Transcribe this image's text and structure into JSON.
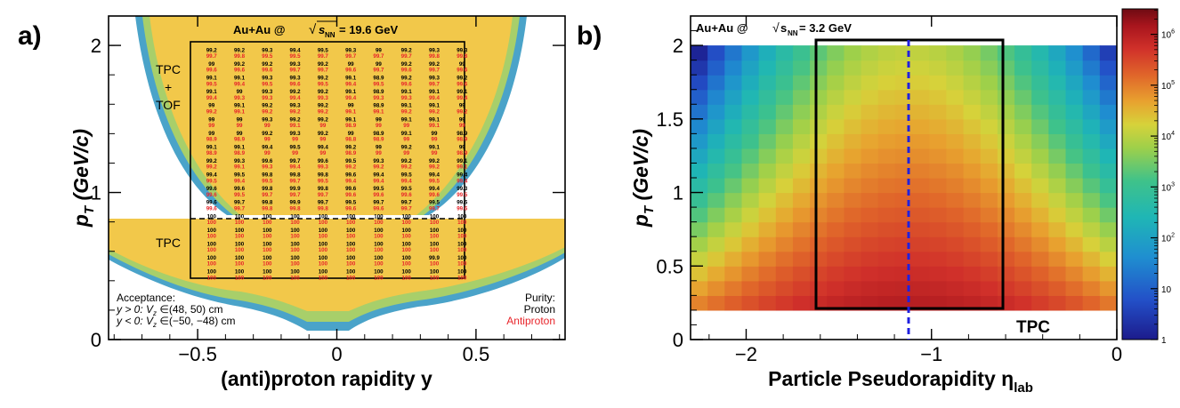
{
  "chart_data": [
    {
      "type": "heatmap",
      "panel_label": "a)",
      "title_prefix": "Au+Au @",
      "title_energy": "= 19.6 GeV",
      "sqrt_symbol": "√",
      "s_letter": "s",
      "s_subscript": "NN",
      "xlabel": "(anti)proton rapidity y",
      "ylabel_p": "p",
      "ylabel_sub": "T",
      "ylabel_unit": " (GeV/c)",
      "xlim": [
        -0.82,
        0.82
      ],
      "ylim": [
        0,
        2.2
      ],
      "xticks": [
        -0.5,
        0,
        0.5
      ],
      "xtick_labels": [
        "−0.5",
        "0",
        "0.5"
      ],
      "yticks": [
        0,
        1,
        2
      ],
      "ytick_labels": [
        "0",
        "1",
        "2"
      ],
      "box": {
        "x": [
          -0.5,
          0.5
        ],
        "y": [
          0.4,
          2.0
        ]
      },
      "dashed_line_pt": 0.8,
      "tpc_tof_label": [
        "TPC",
        "+",
        "TOF"
      ],
      "tpc_label": "TPC",
      "acceptance_title": "Acceptance:",
      "acceptance_line1": "y > 0: V",
      "acceptance_line1_rest": " ∈(48, 50) cm",
      "acceptance_line2": "y < 0: V",
      "acceptance_line2_rest": " ∈(−50, −48) cm",
      "vz_sub": "z",
      "purity_title": "Purity:",
      "purity_proton": "Proton",
      "purity_antiproton": "Antiproton",
      "purity_rows": [
        {
          "proton": [
            "99.2",
            "99.2",
            "99.3",
            "99.4",
            "99.5",
            "99.3",
            "99",
            "99.2",
            "99.3",
            "99.3"
          ],
          "antiproton": [
            "99.7",
            "99.8",
            "99.5",
            "99.5",
            "99.7",
            "99.7",
            "99.7",
            "99.7",
            "99.8",
            "99.8"
          ]
        },
        {
          "proton": [
            "99",
            "99.2",
            "99.2",
            "99.3",
            "99.2",
            "99",
            "99",
            "99.2",
            "99.2",
            "99"
          ],
          "antiproton": [
            "99.6",
            "99.6",
            "99.6",
            "99.7",
            "99.7",
            "99.6",
            "99.7",
            "99.6",
            "99.7",
            "99.6"
          ]
        },
        {
          "proton": [
            "99.1",
            "99.1",
            "99.3",
            "99.3",
            "99.2",
            "99.1",
            "98.9",
            "99.2",
            "99.3",
            "99.2"
          ],
          "antiproton": [
            "99.5",
            "99.4",
            "99.5",
            "99.6",
            "99.5",
            "99.4",
            "99.5",
            "99.6",
            "99.7",
            "99.6"
          ]
        },
        {
          "proton": [
            "99.1",
            "99",
            "99.3",
            "99.2",
            "99.2",
            "99.1",
            "98.9",
            "99.1",
            "99.1",
            "99.1"
          ],
          "antiproton": [
            "99.4",
            "99.3",
            "99.3",
            "99.4",
            "99.3",
            "99.4",
            "99.3",
            "99.3",
            "99.4",
            "99.4"
          ]
        },
        {
          "proton": [
            "99",
            "99.1",
            "99.2",
            "99.3",
            "99.2",
            "99",
            "98.9",
            "99.1",
            "99.1",
            "99"
          ],
          "antiproton": [
            "99.2",
            "99.1",
            "99.2",
            "99.2",
            "99.2",
            "99.1",
            "99.1",
            "99.2",
            "99.2",
            "99.2"
          ]
        },
        {
          "proton": [
            "99",
            "99",
            "99.3",
            "99.2",
            "99.2",
            "99.1",
            "99",
            "99.1",
            "99.1",
            "99"
          ],
          "antiproton": [
            "99",
            "99",
            "99",
            "99.1",
            "99",
            "98.9",
            "99",
            "99",
            "99.1",
            "99"
          ]
        },
        {
          "proton": [
            "99",
            "99",
            "99.2",
            "99.3",
            "99.2",
            "99",
            "98.9",
            "99.1",
            "99",
            "98.9"
          ],
          "antiproton": [
            "98.9",
            "98.9",
            "99",
            "99",
            "99",
            "98.8",
            "98.9",
            "99",
            "99",
            "98.9"
          ]
        },
        {
          "proton": [
            "99.1",
            "99.1",
            "99.4",
            "99.5",
            "99.4",
            "99.2",
            "99",
            "99.2",
            "99.1",
            "99"
          ],
          "antiproton": [
            "98.9",
            "98.9",
            "99",
            "99",
            "99",
            "98.9",
            "99",
            "99",
            "99",
            "98.9"
          ]
        },
        {
          "proton": [
            "99.2",
            "99.3",
            "99.6",
            "99.7",
            "99.6",
            "99.5",
            "99.3",
            "99.2",
            "99.2",
            "99.1"
          ],
          "antiproton": [
            "99.2",
            "99.1",
            "99.3",
            "99.4",
            "99.3",
            "99.2",
            "99.2",
            "99.2",
            "99.2",
            "99.1"
          ]
        },
        {
          "proton": [
            "99.4",
            "99.5",
            "99.8",
            "99.8",
            "99.8",
            "99.6",
            "99.4",
            "99.5",
            "99.4",
            "99.4"
          ],
          "antiproton": [
            "99.5",
            "99.4",
            "99.5",
            "99.7",
            "99.5",
            "99.4",
            "99.4",
            "99.4",
            "99.5",
            "99.4"
          ]
        },
        {
          "proton": [
            "99.6",
            "99.6",
            "99.8",
            "99.9",
            "99.8",
            "99.6",
            "99.5",
            "99.5",
            "99.4",
            "99.3"
          ],
          "antiproton": [
            "99.6",
            "99.5",
            "99.7",
            "99.7",
            "99.7",
            "99.6",
            "99.6",
            "99.6",
            "99.6",
            "99.5"
          ]
        },
        {
          "proton": [
            "99.6",
            "99.7",
            "99.8",
            "99.9",
            "99.7",
            "99.5",
            "99.7",
            "99.7",
            "99.5",
            "99.6"
          ],
          "antiproton": [
            "99.6",
            "99.7",
            "99.8",
            "99.8",
            "99.8",
            "99.6",
            "99.6",
            "99.7",
            "99.7",
            "99.6"
          ]
        },
        {
          "proton": [
            "100",
            "100",
            "100",
            "100",
            "100",
            "100",
            "100",
            "100",
            "100",
            "100"
          ],
          "antiproton": [
            "100",
            "100",
            "100",
            "100",
            "100",
            "100",
            "100",
            "100",
            "100",
            "100"
          ]
        },
        {
          "proton": [
            "100",
            "100",
            "100",
            "100",
            "100",
            "100",
            "100",
            "100",
            "100",
            "100"
          ],
          "antiproton": [
            "100",
            "100",
            "100",
            "100",
            "100",
            "100",
            "100",
            "100",
            "100",
            "100"
          ]
        },
        {
          "proton": [
            "100",
            "100",
            "100",
            "100",
            "100",
            "100",
            "100",
            "100",
            "100",
            "100"
          ],
          "antiproton": [
            "100",
            "100",
            "100",
            "100",
            "100",
            "100",
            "100",
            "100",
            "100",
            "100"
          ]
        },
        {
          "proton": [
            "100",
            "100",
            "100",
            "100",
            "100",
            "100",
            "100",
            "100",
            "99.9",
            "100"
          ],
          "antiproton": [
            "100",
            "100",
            "100",
            "100",
            "100",
            "100",
            "100",
            "100",
            "100",
            "100"
          ]
        },
        {
          "proton": [
            "100",
            "100",
            "100",
            "100",
            "100",
            "100",
            "100",
            "100",
            "100",
            "100"
          ],
          "antiproton": [
            "100",
            "100",
            "100",
            "100",
            "100",
            "100",
            "100",
            "100",
            "100",
            "100"
          ]
        }
      ],
      "colors": {
        "proton": "#000000",
        "antiproton": "#e8242a",
        "band_yellow": "#f2c84a",
        "band_blue": "#4aa3c9",
        "band_green": "#a8cf6a"
      }
    },
    {
      "type": "heatmap",
      "panel_label": "b)",
      "title_prefix": "Au+Au @ ",
      "title_energy": " = 3.2 GeV",
      "sqrt_symbol": "√",
      "s_letter": "s",
      "s_subscript": "NN",
      "xlabel": "Particle Pseudorapidity η",
      "xlabel_sub": "lab",
      "ylabel_p": "p",
      "ylabel_sub": "T",
      "ylabel_unit": " (GeV/c)",
      "xlim": [
        -2.3,
        0
      ],
      "ylim": [
        0,
        2.2
      ],
      "xticks": [
        -2,
        -1,
        0
      ],
      "xtick_labels": [
        "−2",
        "−1",
        "0"
      ],
      "yticks": [
        0,
        0.5,
        1,
        1.5,
        2
      ],
      "ytick_labels": [
        "0",
        "0.5",
        "1",
        "1.5",
        "2"
      ],
      "box": {
        "x": [
          -1.6,
          -0.62
        ],
        "y": [
          0.2,
          2.0
        ]
      },
      "dashed_x": -1.12,
      "tpc_label": "TPC",
      "data_range": {
        "x": [
          -2.3,
          0
        ],
        "y": [
          0.2,
          2.0
        ]
      },
      "center_eta": -1.12,
      "log_range": [
        0,
        6.5
      ],
      "colorbar_ticks": [
        0,
        1,
        2,
        3,
        4,
        5,
        6
      ],
      "colorbar_labels": [
        "1",
        "10",
        "10",
        "10",
        "10",
        "10",
        "10"
      ],
      "colorbar_exponents": [
        "",
        "",
        "2",
        "3",
        "4",
        "5",
        "6"
      ],
      "colors": {
        "box": "#000000",
        "dashed": "#2020e0"
      }
    }
  ]
}
